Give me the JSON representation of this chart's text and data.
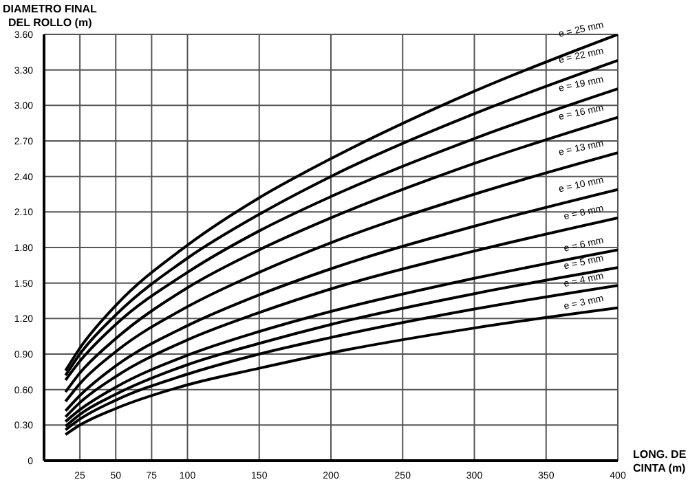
{
  "chart_data": {
    "type": "line",
    "xlabel": "LONG. DE CINTA (m)",
    "ylabel": "DIAMETRO FINAL DEL ROLLO (m)",
    "x": [
      15,
      25,
      50,
      100,
      150,
      200,
      300,
      400
    ],
    "series": [
      {
        "name": "e = 25 mm",
        "color": "#000000",
        "values": [
          0.76,
          0.95,
          1.31,
          1.82,
          2.22,
          2.55,
          3.12,
          3.6
        ]
      },
      {
        "name": "e = 22 mm",
        "color": "#000000",
        "values": [
          0.72,
          0.9,
          1.23,
          1.71,
          2.08,
          2.4,
          2.93,
          3.38
        ]
      },
      {
        "name": "e = 19 mm",
        "color": "#000000",
        "values": [
          0.68,
          0.84,
          1.15,
          1.59,
          1.94,
          2.23,
          2.72,
          3.14
        ]
      },
      {
        "name": "e = 16 mm",
        "color": "#000000",
        "values": [
          0.58,
          0.74,
          1.03,
          1.46,
          1.78,
          2.05,
          2.51,
          2.9
        ]
      },
      {
        "name": "e = 13 mm",
        "color": "#000000",
        "values": [
          0.5,
          0.65,
          0.92,
          1.3,
          1.59,
          1.84,
          2.25,
          2.6
        ]
      },
      {
        "name": "e = 10 mm",
        "color": "#000000",
        "values": [
          0.42,
          0.55,
          0.8,
          1.14,
          1.4,
          1.62,
          1.98,
          2.29
        ]
      },
      {
        "name": "e = 8 mm",
        "color": "#000000",
        "values": [
          0.37,
          0.49,
          0.71,
          1.02,
          1.25,
          1.45,
          1.77,
          2.05
        ]
      },
      {
        "name": "e = 6 mm",
        "color": "#000000",
        "values": [
          0.33,
          0.43,
          0.62,
          0.89,
          1.09,
          1.26,
          1.54,
          1.78
        ]
      },
      {
        "name": "e = 5 mm",
        "color": "#000000",
        "values": [
          0.29,
          0.39,
          0.56,
          0.81,
          0.99,
          1.15,
          1.41,
          1.63
        ]
      },
      {
        "name": "e = 4 mm",
        "color": "#000000",
        "values": [
          0.26,
          0.35,
          0.51,
          0.73,
          0.9,
          1.04,
          1.28,
          1.48
        ]
      },
      {
        "name": "e = 3 mm",
        "color": "#000000",
        "values": [
          0.22,
          0.3,
          0.44,
          0.64,
          0.78,
          0.91,
          1.12,
          1.29
        ]
      }
    ],
    "xlim": [
      0,
      400
    ],
    "xticks": [
      25,
      50,
      75,
      100,
      150,
      200,
      250,
      300,
      350,
      400
    ],
    "ylim": [
      0,
      3.6
    ],
    "yticks": [
      {
        "value": 0,
        "label": "0"
      },
      {
        "value": 0.3,
        "label": "0.30"
      },
      {
        "value": 0.6,
        "label": "0.60"
      },
      {
        "value": 0.9,
        "label": "0.90"
      },
      {
        "value": 1.2,
        "label": "1.20"
      },
      {
        "value": 1.5,
        "label": "1.50"
      },
      {
        "value": 1.8,
        "label": "1.80"
      },
      {
        "value": 2.1,
        "label": "2.10"
      },
      {
        "value": 2.4,
        "label": "2.40"
      },
      {
        "value": 2.7,
        "label": "2.70"
      },
      {
        "value": 3.0,
        "label": "3.00"
      },
      {
        "value": 3.3,
        "label": "3.30"
      },
      {
        "value": 3.6,
        "label": "3.60"
      }
    ],
    "grid": true,
    "legend": false,
    "marker": "none",
    "line_style": "solid"
  }
}
